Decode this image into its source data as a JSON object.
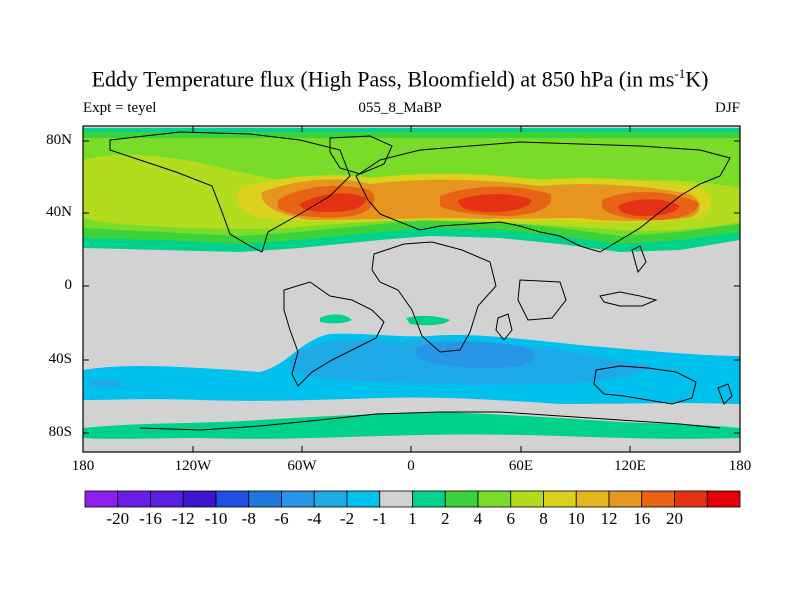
{
  "title": {
    "main": "Eddy Temperature flux (High Pass, Bloomfield) at 850 hPa (in ms",
    "superscript": "-1",
    "suffix": "K)"
  },
  "subtitle_left": "Expt = teyel",
  "subtitle_center": "055_8_MaBP",
  "subtitle_right": "DJF",
  "lat_labels": [
    "80N",
    "40N",
    "0",
    "40S",
    "80S"
  ],
  "lon_labels": [
    "180",
    "120W",
    "60W",
    "0",
    "60E",
    "120E",
    "180"
  ],
  "colorbar": {
    "colors": [
      "#8c1ef0",
      "#6a1ee8",
      "#5a1ee0",
      "#3c14d2",
      "#1e50e6",
      "#1e78dc",
      "#2896e6",
      "#1eaae6",
      "#00c0ee",
      "#d2d2d2",
      "#00d28c",
      "#3cd23c",
      "#78dc28",
      "#b4dc1e",
      "#dcd21e",
      "#e6b41e",
      "#e6961e",
      "#e66414",
      "#e63214",
      "#e6000a"
    ],
    "labels": [
      "-20",
      "-16",
      "-12",
      "-10",
      "-8",
      "-6",
      "-4",
      "-2",
      "-1",
      "1",
      "2",
      "4",
      "6",
      "8",
      "10",
      "12",
      "16",
      "20"
    ]
  },
  "map_colors": {
    "background": "#d2d2d2",
    "band_yellowgreen": "#b4dc1e",
    "band_green": "#78dc28",
    "band_darkgreen": "#3cd23c",
    "band_teal": "#00d28c",
    "band_yellow": "#dcd21e",
    "band_orange": "#e6961e",
    "band_darkorange": "#e66414",
    "band_red": "#e63214",
    "band_cyan": "#00c0ee",
    "band_lightblue": "#1eaae6",
    "band_blue": "#2896e6"
  }
}
